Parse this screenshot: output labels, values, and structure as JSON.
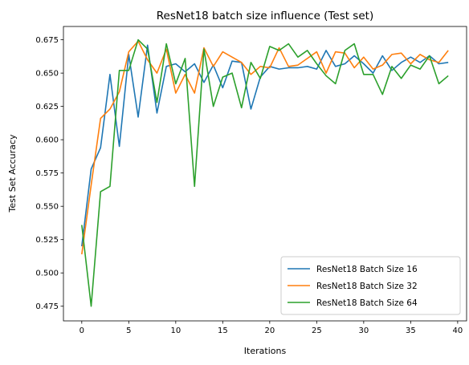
{
  "chart_data": {
    "type": "line",
    "title": "ResNet18 batch size influence (Test set)",
    "xlabel": "Iterations",
    "ylabel": "Test Set Accuracy",
    "xlim": [
      -1.95,
      40.95
    ],
    "ylim": [
      0.464,
      0.685
    ],
    "xticks": [
      0,
      5,
      10,
      15,
      20,
      25,
      30,
      35,
      40
    ],
    "xtick_labels": [
      "0",
      "5",
      "10",
      "15",
      "20",
      "25",
      "30",
      "35",
      "40"
    ],
    "yticks": [
      0.475,
      0.5,
      0.525,
      0.55,
      0.575,
      0.6,
      0.625,
      0.65,
      0.675
    ],
    "ytick_labels": [
      "0.475",
      "0.500",
      "0.525",
      "0.550",
      "0.575",
      "0.600",
      "0.625",
      "0.650",
      "0.675"
    ],
    "grid": false,
    "legend_position": "lower-right",
    "x": [
      0,
      1,
      2,
      3,
      4,
      5,
      6,
      7,
      8,
      9,
      10,
      11,
      12,
      13,
      14,
      15,
      16,
      17,
      18,
      19,
      20,
      21,
      22,
      23,
      24,
      25,
      26,
      27,
      28,
      29,
      30,
      31,
      32,
      33,
      34,
      35,
      36,
      37,
      38,
      39
    ],
    "series": [
      {
        "name": "ResNet18 Batch Size 16",
        "color": "#1f77b4",
        "values": [
          0.52,
          0.578,
          0.594,
          0.649,
          0.595,
          0.664,
          0.617,
          0.671,
          0.62,
          0.655,
          0.657,
          0.651,
          0.657,
          0.643,
          0.656,
          0.639,
          0.659,
          0.658,
          0.623,
          0.647,
          0.655,
          0.653,
          0.654,
          0.654,
          0.655,
          0.653,
          0.667,
          0.655,
          0.657,
          0.663,
          0.657,
          0.65,
          0.663,
          0.652,
          0.658,
          0.662,
          0.658,
          0.663,
          0.657,
          0.658
        ]
      },
      {
        "name": "ResNet18 Batch Size 32",
        "color": "#ff7f0e",
        "values": [
          0.514,
          0.566,
          0.616,
          0.623,
          0.636,
          0.666,
          0.674,
          0.66,
          0.65,
          0.668,
          0.635,
          0.649,
          0.635,
          0.669,
          0.655,
          0.666,
          0.662,
          0.658,
          0.649,
          0.655,
          0.654,
          0.669,
          0.655,
          0.656,
          0.661,
          0.666,
          0.65,
          0.666,
          0.665,
          0.654,
          0.662,
          0.653,
          0.656,
          0.664,
          0.665,
          0.657,
          0.664,
          0.66,
          0.658,
          0.667
        ]
      },
      {
        "name": "ResNet18 Batch Size 64",
        "color": "#2ca02c",
        "values": [
          0.536,
          0.475,
          0.561,
          0.565,
          0.652,
          0.652,
          0.675,
          0.668,
          0.628,
          0.672,
          0.642,
          0.661,
          0.565,
          0.668,
          0.625,
          0.647,
          0.65,
          0.624,
          0.658,
          0.646,
          0.67,
          0.667,
          0.672,
          0.662,
          0.667,
          0.657,
          0.648,
          0.642,
          0.667,
          0.672,
          0.649,
          0.649,
          0.634,
          0.655,
          0.646,
          0.656,
          0.653,
          0.663,
          0.642,
          0.648
        ]
      }
    ]
  }
}
